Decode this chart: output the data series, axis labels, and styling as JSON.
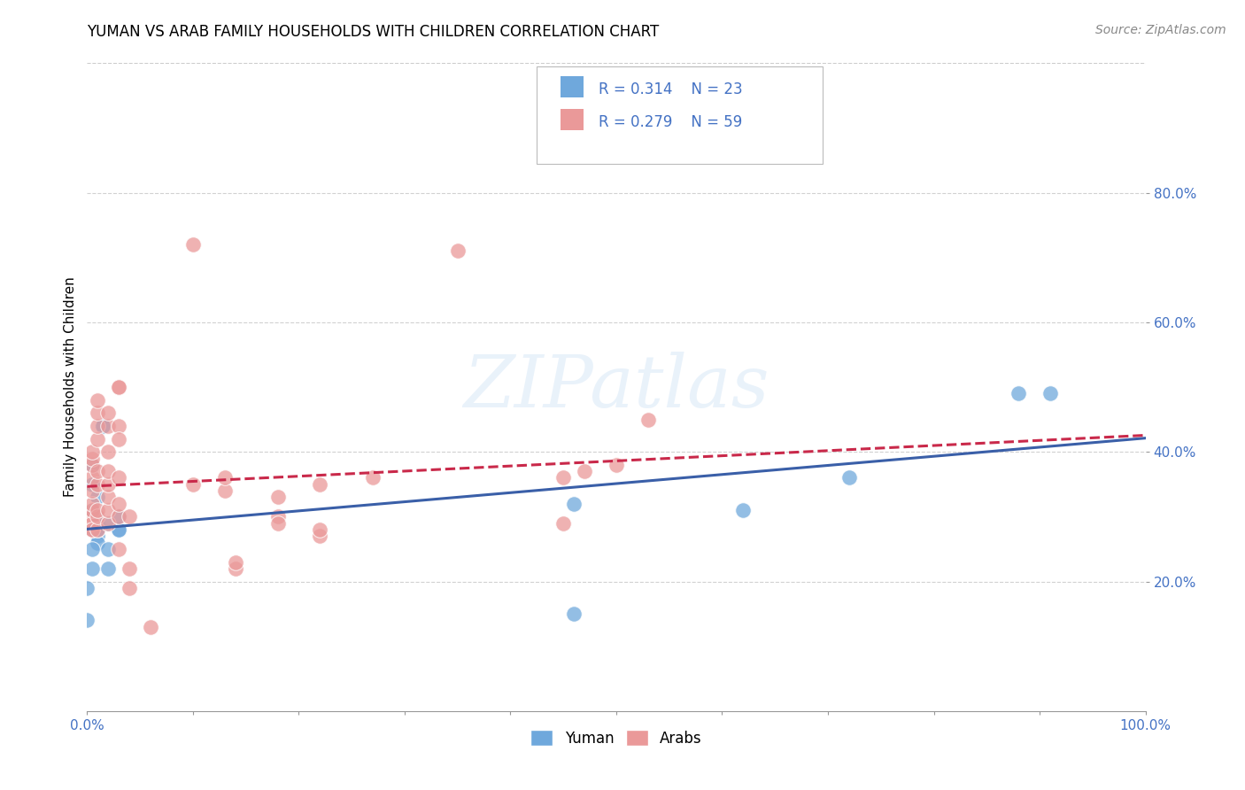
{
  "title": "YUMAN VS ARAB FAMILY HOUSEHOLDS WITH CHILDREN CORRELATION CHART",
  "source": "Source: ZipAtlas.com",
  "ylabel": "Family Households with Children",
  "xlim": [
    0.0,
    1.0
  ],
  "ylim": [
    0.0,
    1.0
  ],
  "xticks": [
    0.0,
    0.1,
    0.2,
    0.3,
    0.4,
    0.5,
    0.6,
    0.7,
    0.8,
    0.9,
    1.0
  ],
  "xtick_labels_show": [
    "0.0%",
    "",
    "",
    "",
    "",
    "",
    "",
    "",
    "",
    "",
    "100.0%"
  ],
  "yticks": [
    0.2,
    0.4,
    0.6,
    0.8
  ],
  "ytick_labels": [
    "20.0%",
    "40.0%",
    "60.0%",
    "80.0%"
  ],
  "background_color": "#ffffff",
  "grid_color": "#cccccc",
  "watermark": "ZIPatlas",
  "yuman_color": "#6fa8dc",
  "arab_color": "#ea9999",
  "yuman_line_color": "#3a5fa8",
  "arab_line_color": "#c9294a",
  "tick_color": "#4472c4",
  "legend_color": "#4472c4",
  "yuman_scatter": [
    [
      0.005,
      0.38
    ],
    [
      0.005,
      0.35
    ],
    [
      0.01,
      0.3
    ],
    [
      0.01,
      0.27
    ],
    [
      0.01,
      0.29
    ],
    [
      0.01,
      0.33
    ],
    [
      0.01,
      0.26
    ],
    [
      0.01,
      0.28
    ],
    [
      0.005,
      0.25
    ],
    [
      0.005,
      0.22
    ],
    [
      0.005,
      0.28
    ],
    [
      0.005,
      0.31
    ],
    [
      0.02,
      0.29
    ],
    [
      0.02,
      0.25
    ],
    [
      0.02,
      0.22
    ],
    [
      0.015,
      0.44
    ],
    [
      0.015,
      0.44
    ],
    [
      0.03,
      0.28
    ],
    [
      0.03,
      0.28
    ],
    [
      0.03,
      0.3
    ],
    [
      0.0,
      0.19
    ],
    [
      0.0,
      0.14
    ],
    [
      0.46,
      0.32
    ],
    [
      0.46,
      0.15
    ],
    [
      0.62,
      0.31
    ],
    [
      0.72,
      0.36
    ],
    [
      0.88,
      0.49
    ],
    [
      0.91,
      0.49
    ]
  ],
  "arab_scatter": [
    [
      0.005,
      0.28
    ],
    [
      0.005,
      0.3
    ],
    [
      0.005,
      0.29
    ],
    [
      0.005,
      0.28
    ],
    [
      0.005,
      0.31
    ],
    [
      0.005,
      0.32
    ],
    [
      0.005,
      0.34
    ],
    [
      0.005,
      0.36
    ],
    [
      0.005,
      0.38
    ],
    [
      0.005,
      0.39
    ],
    [
      0.005,
      0.4
    ],
    [
      0.01,
      0.28
    ],
    [
      0.01,
      0.3
    ],
    [
      0.01,
      0.31
    ],
    [
      0.01,
      0.35
    ],
    [
      0.01,
      0.37
    ],
    [
      0.01,
      0.42
    ],
    [
      0.01,
      0.44
    ],
    [
      0.01,
      0.46
    ],
    [
      0.01,
      0.48
    ],
    [
      0.02,
      0.29
    ],
    [
      0.02,
      0.31
    ],
    [
      0.02,
      0.33
    ],
    [
      0.02,
      0.35
    ],
    [
      0.02,
      0.37
    ],
    [
      0.02,
      0.4
    ],
    [
      0.02,
      0.44
    ],
    [
      0.02,
      0.46
    ],
    [
      0.03,
      0.3
    ],
    [
      0.03,
      0.32
    ],
    [
      0.03,
      0.44
    ],
    [
      0.03,
      0.5
    ],
    [
      0.03,
      0.36
    ],
    [
      0.03,
      0.42
    ],
    [
      0.03,
      0.5
    ],
    [
      0.03,
      0.25
    ],
    [
      0.04,
      0.22
    ],
    [
      0.04,
      0.19
    ],
    [
      0.04,
      0.3
    ],
    [
      0.06,
      0.13
    ],
    [
      0.1,
      0.35
    ],
    [
      0.1,
      0.72
    ],
    [
      0.13,
      0.34
    ],
    [
      0.13,
      0.36
    ],
    [
      0.14,
      0.22
    ],
    [
      0.14,
      0.23
    ],
    [
      0.18,
      0.33
    ],
    [
      0.18,
      0.3
    ],
    [
      0.18,
      0.29
    ],
    [
      0.22,
      0.35
    ],
    [
      0.22,
      0.27
    ],
    [
      0.22,
      0.28
    ],
    [
      0.27,
      0.36
    ],
    [
      0.35,
      0.71
    ],
    [
      0.45,
      0.36
    ],
    [
      0.45,
      0.29
    ],
    [
      0.47,
      0.37
    ],
    [
      0.5,
      0.38
    ],
    [
      0.53,
      0.45
    ]
  ]
}
